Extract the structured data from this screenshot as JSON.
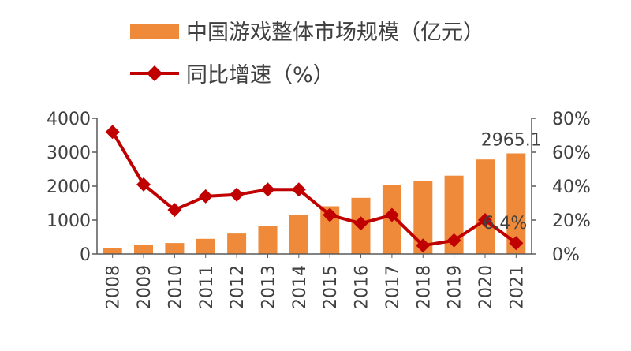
{
  "chart_data": {
    "type": "bar",
    "title": "",
    "categories": [
      "2008",
      "2009",
      "2010",
      "2011",
      "2012",
      "2013",
      "2014",
      "2015",
      "2016",
      "2017",
      "2018",
      "2019",
      "2020",
      "2021"
    ],
    "series": [
      {
        "name": "中国游戏整体市场规模（亿元）",
        "type": "bar",
        "axis": "left",
        "values": [
          186,
          263,
          323,
          446,
          603,
          832,
          1145,
          1407,
          1656,
          2036,
          2144,
          2309,
          2787,
          2965.1
        ]
      },
      {
        "name": "同比增速（%）",
        "type": "line",
        "axis": "right",
        "values": [
          72,
          41,
          26,
          34,
          35,
          38,
          38,
          23,
          18,
          23,
          5,
          8,
          20,
          6.4
        ]
      }
    ],
    "left_axis": {
      "min": 0,
      "max": 4000,
      "ticks": [
        "0",
        "1000",
        "2000",
        "3000",
        "4000"
      ]
    },
    "right_axis": {
      "min": 0,
      "max": 80,
      "ticks": [
        "0%",
        "20%",
        "40%",
        "60%",
        "80%"
      ]
    },
    "data_labels": [
      {
        "series": 0,
        "index": 13,
        "text": "2965.1"
      },
      {
        "series": 1,
        "index": 13,
        "text": "6.4%"
      }
    ],
    "grid": false,
    "legend_position": "top-left",
    "colors": {
      "bar": "#EE8A3A",
      "line": "#C00000",
      "axis": "#404040",
      "text": "#404040"
    }
  }
}
